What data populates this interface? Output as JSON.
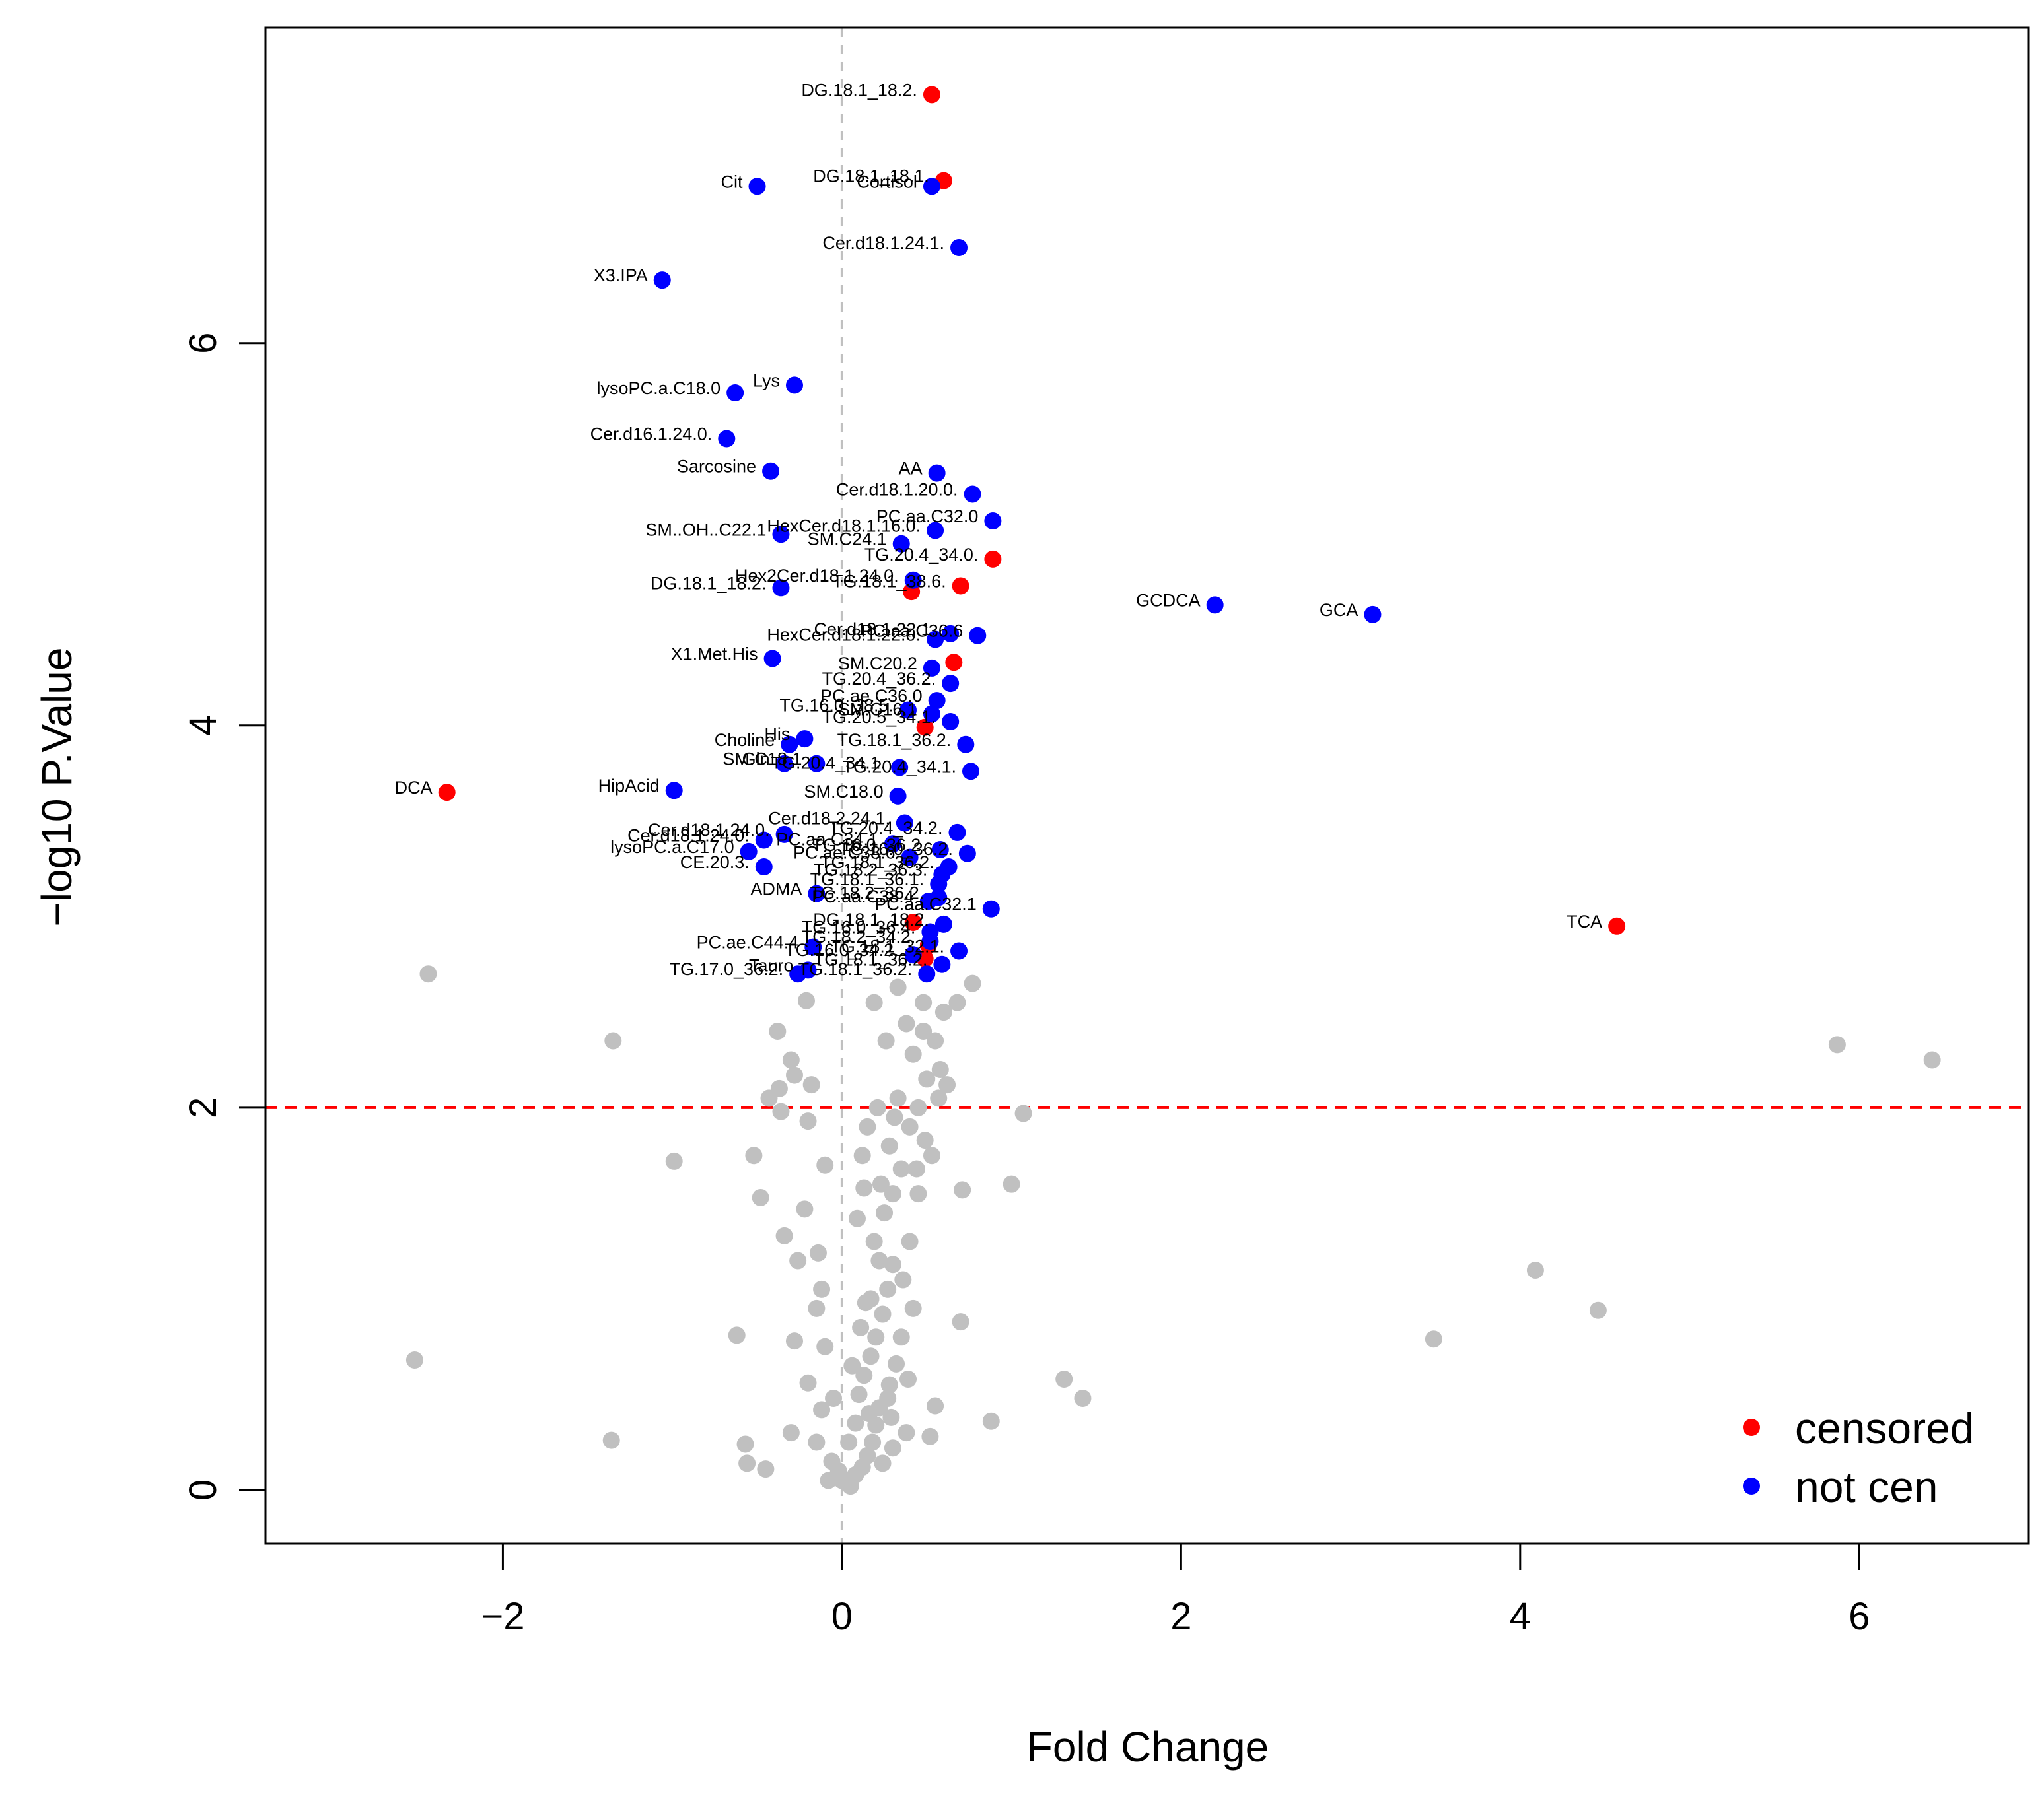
{
  "chart_data": {
    "type": "scatter",
    "title": "",
    "xlabel": "Fold Change",
    "ylabel": "−log10 P.Value",
    "xlim": [
      -3.4,
      7.0
    ],
    "ylim": [
      -0.28,
      7.65
    ],
    "x_ticks": [
      -2,
      0,
      2,
      4,
      6
    ],
    "x_tick_labels": [
      "−2",
      "0",
      "2",
      "4",
      "6"
    ],
    "y_ticks": [
      0,
      2,
      4,
      6
    ],
    "y_tick_labels": [
      "0",
      "2",
      "4",
      "6"
    ],
    "threshold_y": 2,
    "vertical_line_x": 0,
    "grid": false,
    "legend_position": "bottom-right",
    "colors": {
      "censored": "#ff0000",
      "not_cen": "#0000ff",
      "background": "#c0c0c0",
      "threshold_line": "#ff0000",
      "vertical_line": "#c0c0c0"
    },
    "legend": [
      {
        "label": "censored",
        "color_key": "censored"
      },
      {
        "label": "not cen",
        "color_key": "not_cen"
      }
    ],
    "series": [
      {
        "name": "censored",
        "points": [
          {
            "x": 0.53,
            "y": 7.3,
            "label": "DG.18.1_18.2."
          },
          {
            "x": 0.6,
            "y": 6.85,
            "label": "DG.18.1_18.1."
          },
          {
            "x": 0.89,
            "y": 4.87,
            "label": "TG.20.4_34.0."
          },
          {
            "x": 0.7,
            "y": 4.73,
            "label": "TG.18.1_38.6."
          },
          {
            "x": 0.41,
            "y": 4.7,
            "label": ""
          },
          {
            "x": 0.66,
            "y": 4.33,
            "label": ""
          },
          {
            "x": 0.49,
            "y": 3.99,
            "label": ""
          },
          {
            "x": -2.33,
            "y": 3.65,
            "label": "DCA"
          },
          {
            "x": 0.42,
            "y": 2.97,
            "label": ""
          },
          {
            "x": 0.51,
            "y": 2.85,
            "label": ""
          },
          {
            "x": 0.49,
            "y": 2.78,
            "label": ""
          },
          {
            "x": 4.57,
            "y": 2.95,
            "label": "TCA"
          }
        ]
      },
      {
        "name": "not cen",
        "points": [
          {
            "x": -0.5,
            "y": 6.82,
            "label": "Cit"
          },
          {
            "x": 0.53,
            "y": 6.82,
            "label": "Cortisol"
          },
          {
            "x": 0.69,
            "y": 6.5,
            "label": "Cer.d18.1.24.1."
          },
          {
            "x": -1.06,
            "y": 6.33,
            "label": "X3.IPA"
          },
          {
            "x": -0.28,
            "y": 5.78,
            "label": "Lys"
          },
          {
            "x": -0.63,
            "y": 5.74,
            "label": "lysoPC.a.C18.0"
          },
          {
            "x": -0.68,
            "y": 5.5,
            "label": "Cer.d16.1.24.0."
          },
          {
            "x": -0.42,
            "y": 5.33,
            "label": "Sarcosine"
          },
          {
            "x": 0.56,
            "y": 5.32,
            "label": "AA"
          },
          {
            "x": 0.77,
            "y": 5.21,
            "label": "Cer.d18.1.20.0."
          },
          {
            "x": 0.89,
            "y": 5.07,
            "label": "PC.aa.C32.0"
          },
          {
            "x": 0.55,
            "y": 5.02,
            "label": "HexCer.d18.1.16.0."
          },
          {
            "x": -0.36,
            "y": 5.0,
            "label": "SM..OH..C22.1"
          },
          {
            "x": 0.35,
            "y": 4.95,
            "label": "SM.C24.1"
          },
          {
            "x": 0.42,
            "y": 4.76,
            "label": "Hex2Cer.d18.1.24.0."
          },
          {
            "x": -0.36,
            "y": 4.72,
            "label": "DG.18.1_18.2."
          },
          {
            "x": 2.2,
            "y": 4.63,
            "label": "GCDCA"
          },
          {
            "x": 3.13,
            "y": 4.58,
            "label": "GCA"
          },
          {
            "x": 0.64,
            "y": 4.48,
            "label": "Cer.d18.1.22.1."
          },
          {
            "x": 0.8,
            "y": 4.47,
            "label": "PC.aa.C36.6"
          },
          {
            "x": 0.55,
            "y": 4.45,
            "label": "HexCer.d18.1.22.0."
          },
          {
            "x": -0.41,
            "y": 4.35,
            "label": "X1.Met.His"
          },
          {
            "x": 0.53,
            "y": 4.3,
            "label": "SM.C20.2"
          },
          {
            "x": 0.64,
            "y": 4.22,
            "label": "TG.20.4_36.2."
          },
          {
            "x": 0.56,
            "y": 4.13,
            "label": "PC.ae.C36.0"
          },
          {
            "x": 0.39,
            "y": 4.08,
            "label": "TG.16.0_38.5."
          },
          {
            "x": 0.53,
            "y": 4.06,
            "label": "SM.C16.1"
          },
          {
            "x": 0.64,
            "y": 4.02,
            "label": "TG.20.5_34.1."
          },
          {
            "x": -0.31,
            "y": 3.9,
            "label": "Choline"
          },
          {
            "x": -0.22,
            "y": 3.93,
            "label": "His"
          },
          {
            "x": 0.73,
            "y": 3.9,
            "label": "TG.18.1_36.2."
          },
          {
            "x": -0.34,
            "y": 3.8,
            "label": "Gln"
          },
          {
            "x": -0.15,
            "y": 3.8,
            "label": "SM.C18.1"
          },
          {
            "x": 0.34,
            "y": 3.78,
            "label": "TG.20.4_34.1."
          },
          {
            "x": 0.76,
            "y": 3.76,
            "label": "TG.20.4_34.1."
          },
          {
            "x": -0.99,
            "y": 3.66,
            "label": "HipAcid"
          },
          {
            "x": 0.33,
            "y": 3.63,
            "label": "SM.C18.0"
          },
          {
            "x": 0.37,
            "y": 3.49,
            "label": "Cer.d18.2.24.1."
          },
          {
            "x": 0.68,
            "y": 3.44,
            "label": "TG.20.4_34.2."
          },
          {
            "x": -0.34,
            "y": 3.43,
            "label": "Cer.d18.1.24.0."
          },
          {
            "x": -0.46,
            "y": 3.4,
            "label": "Cer.d18.1.24.0."
          },
          {
            "x": 0.3,
            "y": 3.38,
            "label": "PC.aa.C34.1"
          },
          {
            "x": 0.58,
            "y": 3.35,
            "label": "TG.16.0_36.2."
          },
          {
            "x": 0.74,
            "y": 3.33,
            "label": "TG.16.0_36.2."
          },
          {
            "x": -0.55,
            "y": 3.34,
            "label": "lysoPC.a.C17.0"
          },
          {
            "x": 0.4,
            "y": 3.31,
            "label": "PC.ae.C38.6"
          },
          {
            "x": -0.46,
            "y": 3.26,
            "label": "CE.20.3."
          },
          {
            "x": 0.63,
            "y": 3.26,
            "label": "TG.18.1_36.2."
          },
          {
            "x": 0.59,
            "y": 3.22,
            "label": "TG.18.2_36.3."
          },
          {
            "x": 0.57,
            "y": 3.17,
            "label": "TG.18.1_36.1."
          },
          {
            "x": -0.15,
            "y": 3.12,
            "label": "ADMA"
          },
          {
            "x": 0.57,
            "y": 3.1,
            "label": "TG.18.2_36.2."
          },
          {
            "x": 0.51,
            "y": 3.08,
            "label": "PC.aa.C38.4"
          },
          {
            "x": 0.88,
            "y": 3.04,
            "label": "PC.aa.C32.1"
          },
          {
            "x": 0.6,
            "y": 2.96,
            "label": "DG.18.1_18.2."
          },
          {
            "x": 0.52,
            "y": 2.92,
            "label": "TG.16.0_36.4."
          },
          {
            "x": -0.17,
            "y": 2.84,
            "label": "PC.ae.C44.4"
          },
          {
            "x": 0.52,
            "y": 2.87,
            "label": "TG.18.2_34.2."
          },
          {
            "x": 0.69,
            "y": 2.82,
            "label": "TG.18.1_32.1."
          },
          {
            "x": 0.42,
            "y": 2.8,
            "label": "TG.16.0_34.2."
          },
          {
            "x": 0.59,
            "y": 2.75,
            "label": "TG.18.1_36.2."
          },
          {
            "x": -0.2,
            "y": 2.72,
            "label": "Tauro"
          },
          {
            "x": -0.26,
            "y": 2.7,
            "label": "TG.17.0_36.2."
          },
          {
            "x": 0.5,
            "y": 2.7,
            "label": "TG.18.1_36.2."
          }
        ]
      },
      {
        "name": "not significant",
        "points": [
          {
            "x": -2.44,
            "y": 2.7
          },
          {
            "x": -1.35,
            "y": 2.35
          },
          {
            "x": -0.99,
            "y": 1.72
          },
          {
            "x": 5.87,
            "y": 2.33
          },
          {
            "x": 6.43,
            "y": 2.25
          },
          {
            "x": 4.09,
            "y": 1.15
          },
          {
            "x": 4.46,
            "y": 0.94
          },
          {
            "x": 3.49,
            "y": 0.79
          },
          {
            "x": -2.52,
            "y": 0.68
          },
          {
            "x": -1.36,
            "y": 0.26
          },
          {
            "x": 1.07,
            "y": 1.97
          },
          {
            "x": 1.0,
            "y": 1.6
          },
          {
            "x": 0.71,
            "y": 1.57
          },
          {
            "x": 1.31,
            "y": 0.58
          },
          {
            "x": 1.42,
            "y": 0.48
          },
          {
            "x": 0.88,
            "y": 0.36
          },
          {
            "x": 0.7,
            "y": 0.88
          },
          {
            "x": -0.62,
            "y": 0.81
          },
          {
            "x": -0.57,
            "y": 0.24
          },
          {
            "x": -0.56,
            "y": 0.14
          },
          {
            "x": -0.45,
            "y": 0.11
          },
          {
            "x": -0.52,
            "y": 1.75
          },
          {
            "x": -0.48,
            "y": 1.53
          },
          {
            "x": -0.34,
            "y": 1.33
          },
          {
            "x": -0.22,
            "y": 1.47
          },
          {
            "x": -0.2,
            "y": 1.93
          },
          {
            "x": -0.36,
            "y": 1.98
          },
          {
            "x": -0.43,
            "y": 2.05
          },
          {
            "x": -0.3,
            "y": 2.25
          },
          {
            "x": -0.38,
            "y": 2.4
          },
          {
            "x": -0.21,
            "y": 2.56
          },
          {
            "x": -0.37,
            "y": 2.1
          },
          {
            "x": -0.28,
            "y": 2.17
          },
          {
            "x": -0.18,
            "y": 2.12
          },
          {
            "x": -0.1,
            "y": 1.7
          },
          {
            "x": -0.14,
            "y": 1.24
          },
          {
            "x": -0.12,
            "y": 1.05
          },
          {
            "x": -0.15,
            "y": 0.95
          },
          {
            "x": -0.1,
            "y": 0.75
          },
          {
            "x": -0.28,
            "y": 0.78
          },
          {
            "x": -0.3,
            "y": 0.3
          },
          {
            "x": -0.15,
            "y": 0.25
          },
          {
            "x": -0.2,
            "y": 0.56
          },
          {
            "x": -0.12,
            "y": 0.42
          },
          {
            "x": -0.06,
            "y": 0.15
          },
          {
            "x": 0.0,
            "y": 0.05
          },
          {
            "x": 0.05,
            "y": 0.02
          },
          {
            "x": 0.08,
            "y": 0.08
          },
          {
            "x": 0.12,
            "y": 0.12
          },
          {
            "x": 0.15,
            "y": 0.18
          },
          {
            "x": 0.18,
            "y": 0.25
          },
          {
            "x": 0.2,
            "y": 0.34
          },
          {
            "x": 0.22,
            "y": 0.43
          },
          {
            "x": 0.1,
            "y": 0.5
          },
          {
            "x": 0.13,
            "y": 0.6
          },
          {
            "x": 0.17,
            "y": 0.7
          },
          {
            "x": 0.2,
            "y": 0.8
          },
          {
            "x": 0.24,
            "y": 0.92
          },
          {
            "x": 0.27,
            "y": 1.05
          },
          {
            "x": 0.3,
            "y": 1.18
          },
          {
            "x": 0.19,
            "y": 1.3
          },
          {
            "x": 0.25,
            "y": 1.45
          },
          {
            "x": 0.3,
            "y": 1.55
          },
          {
            "x": 0.35,
            "y": 1.68
          },
          {
            "x": 0.28,
            "y": 1.8
          },
          {
            "x": 0.4,
            "y": 1.9
          },
          {
            "x": 0.45,
            "y": 2.0
          },
          {
            "x": 0.33,
            "y": 2.05
          },
          {
            "x": 0.5,
            "y": 2.15
          },
          {
            "x": 0.42,
            "y": 2.28
          },
          {
            "x": 0.55,
            "y": 2.35
          },
          {
            "x": 0.38,
            "y": 2.44
          },
          {
            "x": 0.6,
            "y": 2.5
          },
          {
            "x": 0.48,
            "y": 2.55
          },
          {
            "x": 0.33,
            "y": 2.63
          },
          {
            "x": 0.68,
            "y": 2.55
          },
          {
            "x": 0.77,
            "y": 2.65
          },
          {
            "x": 0.58,
            "y": 2.2
          },
          {
            "x": 0.53,
            "y": 1.75
          },
          {
            "x": 0.45,
            "y": 1.55
          },
          {
            "x": 0.4,
            "y": 1.3
          },
          {
            "x": 0.28,
            "y": 0.55
          },
          {
            "x": 0.32,
            "y": 0.66
          },
          {
            "x": 0.38,
            "y": 0.3
          },
          {
            "x": 0.55,
            "y": 0.44
          },
          {
            "x": 0.52,
            "y": 0.28
          },
          {
            "x": 0.08,
            "y": 0.35
          },
          {
            "x": 0.06,
            "y": 0.65
          },
          {
            "x": 0.11,
            "y": 0.85
          },
          {
            "x": 0.17,
            "y": 1.0
          },
          {
            "x": 0.22,
            "y": 1.2
          },
          {
            "x": 0.09,
            "y": 1.42
          },
          {
            "x": 0.13,
            "y": 1.58
          },
          {
            "x": 0.31,
            "y": 1.95
          },
          {
            "x": 0.26,
            "y": 2.35
          },
          {
            "x": 0.19,
            "y": 2.55
          },
          {
            "x": 0.04,
            "y": 0.25
          },
          {
            "x": -0.02,
            "y": 0.1
          },
          {
            "x": 0.16,
            "y": 0.4
          },
          {
            "x": 0.27,
            "y": 0.48
          },
          {
            "x": 0.35,
            "y": 0.8
          },
          {
            "x": 0.42,
            "y": 0.95
          },
          {
            "x": 0.36,
            "y": 1.1
          },
          {
            "x": 0.49,
            "y": 1.83
          },
          {
            "x": 0.57,
            "y": 2.05
          },
          {
            "x": 0.62,
            "y": 2.12
          },
          {
            "x": 0.48,
            "y": 2.4
          },
          {
            "x": -0.26,
            "y": 1.2
          },
          {
            "x": -0.08,
            "y": 0.05
          },
          {
            "x": 0.24,
            "y": 0.14
          },
          {
            "x": 0.21,
            "y": 2.0
          },
          {
            "x": 0.15,
            "y": 1.9
          },
          {
            "x": 0.14,
            "y": 0.98
          },
          {
            "x": 0.3,
            "y": 0.22
          },
          {
            "x": -0.05,
            "y": 0.48
          },
          {
            "x": 0.12,
            "y": 1.75
          },
          {
            "x": 0.23,
            "y": 1.6
          },
          {
            "x": 0.44,
            "y": 1.68
          },
          {
            "x": 0.29,
            "y": 0.38
          },
          {
            "x": 0.39,
            "y": 0.58
          }
        ]
      }
    ]
  }
}
